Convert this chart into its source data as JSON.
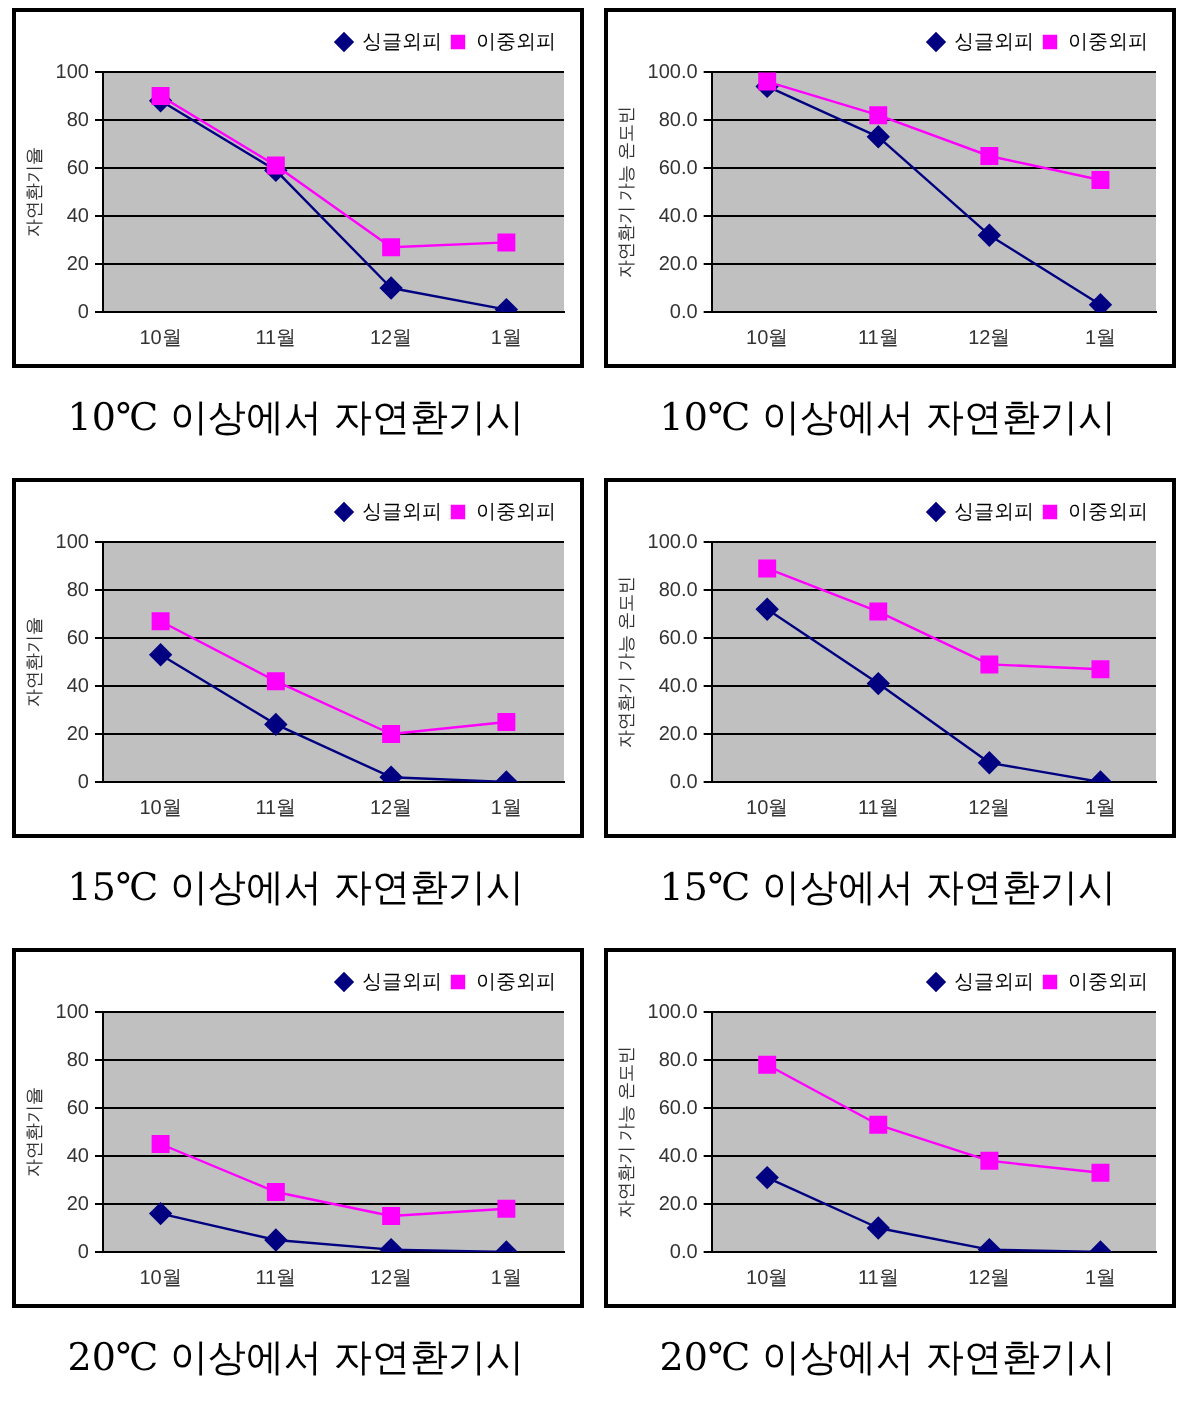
{
  "chart_data": [
    {
      "type": "line",
      "title": "10℃ 이상에서 자연환기시",
      "ylabel": "자연환기율",
      "categories": [
        "10월",
        "11월",
        "12월",
        "1월"
      ],
      "ylim": [
        0,
        100
      ],
      "yticks": [
        0,
        20,
        40,
        60,
        80,
        100
      ],
      "grid": "y",
      "legend": "top right",
      "series": [
        {
          "name": "싱글외피",
          "color": "#000080",
          "marker": "diamond",
          "values": [
            88,
            59,
            10,
            1
          ]
        },
        {
          "name": "이중외피",
          "color": "#ff00ff",
          "marker": "square",
          "values": [
            90,
            61,
            27,
            29
          ]
        }
      ]
    },
    {
      "type": "line",
      "title": "10℃ 이상에서 자연환기시",
      "ylabel": "자연환기 가능 온도빈",
      "categories": [
        "10월",
        "11월",
        "12월",
        "1월"
      ],
      "ylim": [
        0,
        100
      ],
      "yticks": [
        {
          "value": 0,
          "label": "0.0"
        },
        {
          "value": 20,
          "label": "20.0"
        },
        {
          "value": 40,
          "label": "40.0"
        },
        {
          "value": 60,
          "label": "60.0"
        },
        {
          "value": 80,
          "label": "80.0"
        },
        {
          "value": 100,
          "label": "100.0"
        }
      ],
      "grid": "y",
      "legend": "top right",
      "series": [
        {
          "name": "싱글외피",
          "color": "#000080",
          "marker": "diamond",
          "values": [
            94,
            73,
            32,
            3
          ]
        },
        {
          "name": "이중외피",
          "color": "#ff00ff",
          "marker": "square",
          "values": [
            96,
            82,
            65,
            55
          ]
        }
      ]
    },
    {
      "type": "line",
      "title": "15℃ 이상에서 자연환기시",
      "ylabel": "자연환기율",
      "categories": [
        "10월",
        "11월",
        "12월",
        "1월"
      ],
      "ylim": [
        0,
        100
      ],
      "yticks": [
        0,
        20,
        40,
        60,
        80,
        100
      ],
      "grid": "y",
      "legend": "top right",
      "series": [
        {
          "name": "싱글외피",
          "color": "#000080",
          "marker": "diamond",
          "values": [
            53,
            24,
            2,
            0
          ]
        },
        {
          "name": "이중외피",
          "color": "#ff00ff",
          "marker": "square",
          "values": [
            67,
            42,
            20,
            25
          ]
        }
      ]
    },
    {
      "type": "line",
      "title": "15℃ 이상에서 자연환기시",
      "ylabel": "자연환기 가능 온도빈",
      "categories": [
        "10월",
        "11월",
        "12월",
        "1월"
      ],
      "ylim": [
        0,
        100
      ],
      "yticks": [
        {
          "value": 0,
          "label": "0.0"
        },
        {
          "value": 20,
          "label": "20.0"
        },
        {
          "value": 40,
          "label": "40.0"
        },
        {
          "value": 60,
          "label": "60.0"
        },
        {
          "value": 80,
          "label": "80.0"
        },
        {
          "value": 100,
          "label": "100.0"
        }
      ],
      "grid": "y",
      "legend": "top right",
      "series": [
        {
          "name": "싱글외피",
          "color": "#000080",
          "marker": "diamond",
          "values": [
            72,
            41,
            8,
            0
          ]
        },
        {
          "name": "이중외피",
          "color": "#ff00ff",
          "marker": "square",
          "values": [
            89,
            71,
            49,
            47
          ]
        }
      ]
    },
    {
      "type": "line",
      "title": "20℃ 이상에서 자연환기시",
      "ylabel": "자연환기율",
      "categories": [
        "10월",
        "11월",
        "12월",
        "1월"
      ],
      "ylim": [
        0,
        100
      ],
      "yticks": [
        0,
        20,
        40,
        60,
        80,
        100
      ],
      "grid": "y",
      "legend": "top right",
      "series": [
        {
          "name": "싱글외피",
          "color": "#000080",
          "marker": "diamond",
          "values": [
            16,
            5,
            1,
            0
          ]
        },
        {
          "name": "이중외피",
          "color": "#ff00ff",
          "marker": "square",
          "values": [
            45,
            25,
            15,
            18
          ]
        }
      ]
    },
    {
      "type": "line",
      "title": "20℃ 이상에서 자연환기시",
      "ylabel": "자연환기 가능 온도빈",
      "categories": [
        "10월",
        "11월",
        "12월",
        "1월"
      ],
      "ylim": [
        0,
        100
      ],
      "yticks": [
        {
          "value": 0,
          "label": "0.0"
        },
        {
          "value": 20,
          "label": "20.0"
        },
        {
          "value": 40,
          "label": "40.0"
        },
        {
          "value": 60,
          "label": "60.0"
        },
        {
          "value": 80,
          "label": "80.0"
        },
        {
          "value": 100,
          "label": "100.0"
        }
      ],
      "grid": "y",
      "legend": "top right",
      "series": [
        {
          "name": "싱글외피",
          "color": "#000080",
          "marker": "diamond",
          "values": [
            31,
            10,
            1,
            0
          ]
        },
        {
          "name": "이중외피",
          "color": "#ff00ff",
          "marker": "square",
          "values": [
            78,
            53,
            38,
            33
          ]
        }
      ]
    }
  ]
}
